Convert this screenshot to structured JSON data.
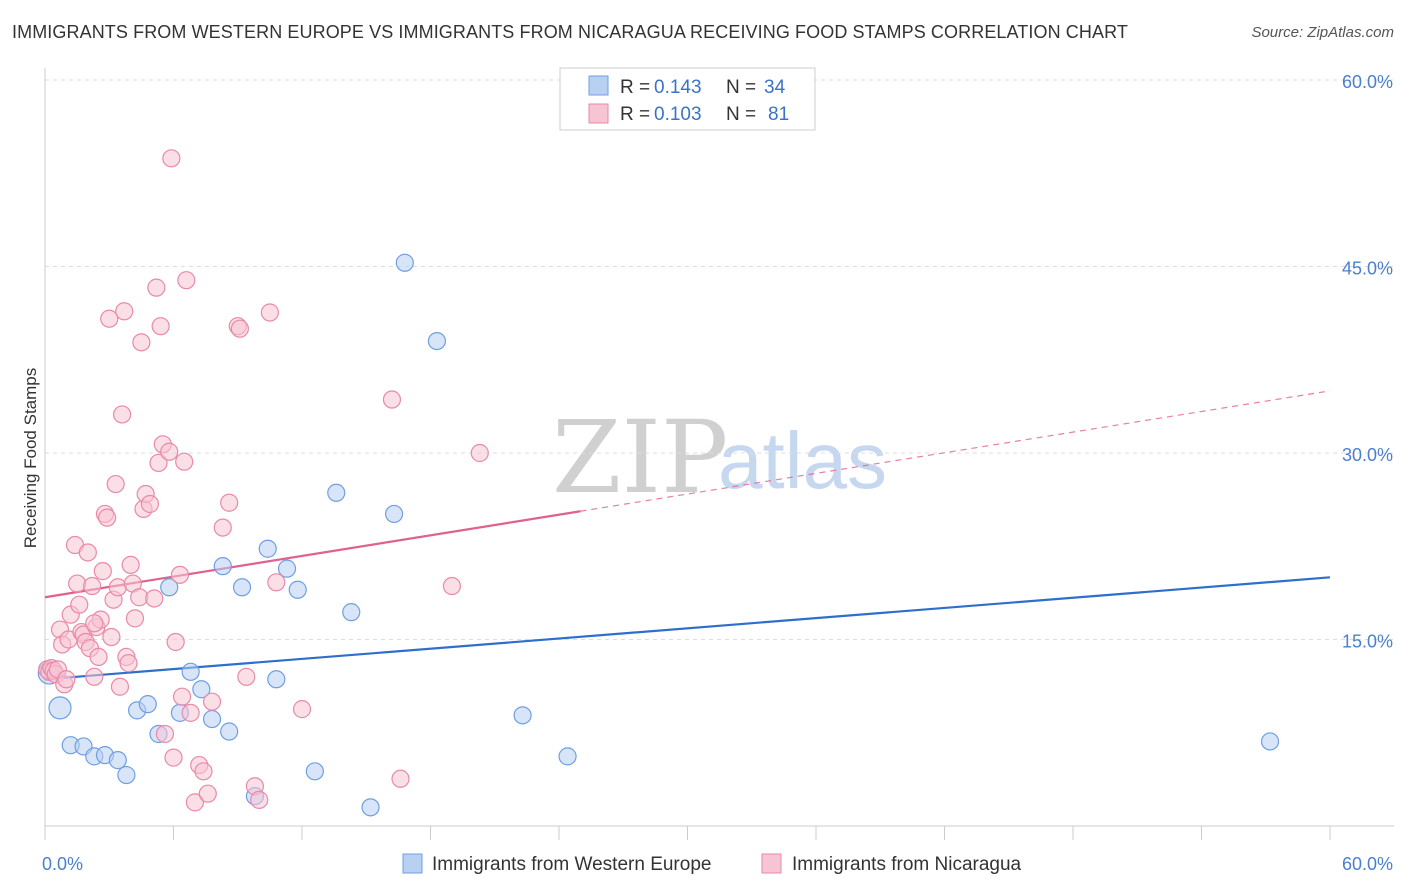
{
  "title": "IMMIGRANTS FROM WESTERN EUROPE VS IMMIGRANTS FROM NICARAGUA RECEIVING FOOD STAMPS CORRELATION CHART",
  "source": "Source: ZipAtlas.com",
  "watermark": {
    "zip": "ZIP",
    "atlas": "atlas"
  },
  "colors": {
    "blue_fill": "#b8d0f2",
    "blue_stroke": "#6f9fe0",
    "blue_line": "#2f6fcc",
    "pink_fill": "#f7c4d3",
    "pink_stroke": "#e88aa8",
    "pink_line": "#e0608e",
    "grid": "#dddddd"
  },
  "legend": {
    "r_label": "R =",
    "n_label": "N =",
    "entries": [
      {
        "r": "0.143",
        "n": "34"
      },
      {
        "r": "0.103",
        "n": "81"
      }
    ]
  },
  "chart_data": {
    "type": "scatter",
    "title": "IMMIGRANTS FROM WESTERN EUROPE VS IMMIGRANTS FROM NICARAGUA RECEIVING FOOD STAMPS CORRELATION CHART",
    "xlabel": "",
    "ylabel": "Receiving Food Stamps",
    "xlim": [
      0,
      60
    ],
    "ylim": [
      0,
      60
    ],
    "x_tick_labels": [
      "0.0%",
      "60.0%"
    ],
    "y_ticks": [
      15,
      30,
      45,
      60
    ],
    "y_tick_labels": [
      "15.0%",
      "30.0%",
      "45.0%",
      "60.0%"
    ],
    "series": [
      {
        "name": "Immigrants from Western Europe",
        "color": "blue",
        "trend": {
          "x": [
            0,
            60
          ],
          "y": [
            11.8,
            20.0
          ],
          "dashed_from": null
        },
        "points": [
          {
            "x": 0.2,
            "y": 12.3,
            "big": true
          },
          {
            "x": 0.7,
            "y": 9.5,
            "big": true
          },
          {
            "x": 1.2,
            "y": 6.5
          },
          {
            "x": 1.8,
            "y": 6.4
          },
          {
            "x": 2.3,
            "y": 5.6
          },
          {
            "x": 2.8,
            "y": 5.7
          },
          {
            "x": 3.4,
            "y": 5.3
          },
          {
            "x": 3.8,
            "y": 4.1
          },
          {
            "x": 4.3,
            "y": 9.3
          },
          {
            "x": 4.8,
            "y": 9.8
          },
          {
            "x": 5.3,
            "y": 7.4
          },
          {
            "x": 5.8,
            "y": 19.2
          },
          {
            "x": 6.3,
            "y": 9.1
          },
          {
            "x": 6.8,
            "y": 12.4
          },
          {
            "x": 7.3,
            "y": 11.0
          },
          {
            "x": 7.8,
            "y": 8.6
          },
          {
            "x": 8.3,
            "y": 20.9
          },
          {
            "x": 8.6,
            "y": 7.6
          },
          {
            "x": 9.2,
            "y": 19.2
          },
          {
            "x": 9.8,
            "y": 2.4
          },
          {
            "x": 10.4,
            "y": 22.3
          },
          {
            "x": 10.8,
            "y": 11.8
          },
          {
            "x": 11.3,
            "y": 20.7
          },
          {
            "x": 11.8,
            "y": 19.0
          },
          {
            "x": 12.6,
            "y": 4.4
          },
          {
            "x": 13.6,
            "y": 26.8
          },
          {
            "x": 14.3,
            "y": 17.2
          },
          {
            "x": 15.2,
            "y": 1.5
          },
          {
            "x": 16.3,
            "y": 25.1
          },
          {
            "x": 16.8,
            "y": 45.3
          },
          {
            "x": 18.3,
            "y": 39.0
          },
          {
            "x": 22.3,
            "y": 8.9
          },
          {
            "x": 24.4,
            "y": 5.6
          },
          {
            "x": 57.2,
            "y": 6.8
          }
        ]
      },
      {
        "name": "Immigrants from Nicaragua",
        "color": "pink",
        "trend": {
          "x": [
            0,
            60
          ],
          "y": [
            18.4,
            35.0
          ],
          "dashed_from": 25
        },
        "points": [
          {
            "x": 0.1,
            "y": 12.6
          },
          {
            "x": 0.2,
            "y": 12.4
          },
          {
            "x": 0.3,
            "y": 12.7
          },
          {
            "x": 0.4,
            "y": 12.5
          },
          {
            "x": 0.5,
            "y": 12.2
          },
          {
            "x": 0.6,
            "y": 12.6
          },
          {
            "x": 0.7,
            "y": 15.8
          },
          {
            "x": 0.8,
            "y": 14.6
          },
          {
            "x": 0.9,
            "y": 11.4
          },
          {
            "x": 1.0,
            "y": 11.8
          },
          {
            "x": 1.1,
            "y": 15.0
          },
          {
            "x": 1.2,
            "y": 17.0
          },
          {
            "x": 1.4,
            "y": 22.6
          },
          {
            "x": 1.5,
            "y": 19.5
          },
          {
            "x": 1.6,
            "y": 17.8
          },
          {
            "x": 1.7,
            "y": 15.6
          },
          {
            "x": 1.8,
            "y": 15.4
          },
          {
            "x": 1.9,
            "y": 14.8
          },
          {
            "x": 2.0,
            "y": 22.0
          },
          {
            "x": 2.1,
            "y": 14.3
          },
          {
            "x": 2.2,
            "y": 19.3
          },
          {
            "x": 2.3,
            "y": 12.0
          },
          {
            "x": 2.4,
            "y": 16.0
          },
          {
            "x": 2.5,
            "y": 13.6
          },
          {
            "x": 2.6,
            "y": 16.6
          },
          {
            "x": 2.7,
            "y": 20.5
          },
          {
            "x": 2.8,
            "y": 25.1
          },
          {
            "x": 2.9,
            "y": 24.8
          },
          {
            "x": 3.0,
            "y": 40.8
          },
          {
            "x": 3.1,
            "y": 15.2
          },
          {
            "x": 3.2,
            "y": 18.2
          },
          {
            "x": 3.3,
            "y": 27.5
          },
          {
            "x": 3.4,
            "y": 19.2
          },
          {
            "x": 3.5,
            "y": 11.2
          },
          {
            "x": 3.6,
            "y": 33.1
          },
          {
            "x": 3.7,
            "y": 41.4
          },
          {
            "x": 3.8,
            "y": 13.6
          },
          {
            "x": 3.9,
            "y": 13.1
          },
          {
            "x": 4.0,
            "y": 21.0
          },
          {
            "x": 4.1,
            "y": 19.5
          },
          {
            "x": 4.2,
            "y": 16.7
          },
          {
            "x": 4.4,
            "y": 18.4
          },
          {
            "x": 4.5,
            "y": 38.9
          },
          {
            "x": 4.6,
            "y": 25.5
          },
          {
            "x": 4.7,
            "y": 26.7
          },
          {
            "x": 4.9,
            "y": 25.9
          },
          {
            "x": 5.1,
            "y": 18.3
          },
          {
            "x": 5.2,
            "y": 43.3
          },
          {
            "x": 5.3,
            "y": 29.2
          },
          {
            "x": 5.4,
            "y": 40.2
          },
          {
            "x": 5.5,
            "y": 30.7
          },
          {
            "x": 5.6,
            "y": 7.4
          },
          {
            "x": 5.8,
            "y": 30.1
          },
          {
            "x": 5.9,
            "y": 53.7
          },
          {
            "x": 6.0,
            "y": 5.5
          },
          {
            "x": 6.1,
            "y": 14.8
          },
          {
            "x": 6.3,
            "y": 20.2
          },
          {
            "x": 6.4,
            "y": 10.4
          },
          {
            "x": 6.5,
            "y": 29.3
          },
          {
            "x": 6.6,
            "y": 43.9
          },
          {
            "x": 6.8,
            "y": 9.1
          },
          {
            "x": 7.0,
            "y": 1.9
          },
          {
            "x": 7.2,
            "y": 4.9
          },
          {
            "x": 7.4,
            "y": 4.4
          },
          {
            "x": 7.6,
            "y": 2.6
          },
          {
            "x": 7.8,
            "y": 10.0
          },
          {
            "x": 8.3,
            "y": 24.0
          },
          {
            "x": 8.6,
            "y": 26.0
          },
          {
            "x": 9.0,
            "y": 40.2
          },
          {
            "x": 9.1,
            "y": 40.0
          },
          {
            "x": 9.4,
            "y": 12.0
          },
          {
            "x": 9.8,
            "y": 3.2
          },
          {
            "x": 10.0,
            "y": 2.1
          },
          {
            "x": 10.5,
            "y": 41.3
          },
          {
            "x": 10.8,
            "y": 19.6
          },
          {
            "x": 12.0,
            "y": 9.4
          },
          {
            "x": 16.2,
            "y": 34.3
          },
          {
            "x": 16.6,
            "y": 3.8
          },
          {
            "x": 19.0,
            "y": 19.3
          },
          {
            "x": 20.3,
            "y": 30.0
          },
          {
            "x": 2.3,
            "y": 16.3
          }
        ]
      }
    ]
  }
}
